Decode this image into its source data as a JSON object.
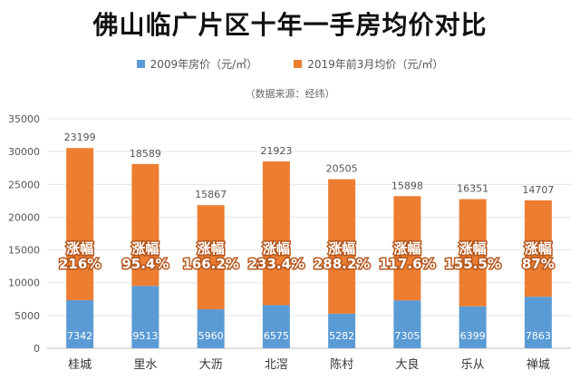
{
  "title": "佛山临广片区十年一手房均价对比",
  "source": "（数据来源：经纬）",
  "colors": {
    "base": "#5b9bd5",
    "growth": "#ed7d31"
  },
  "legend": [
    {
      "label": "2009年房价（元/㎡）",
      "color": "#5b9bd5"
    },
    {
      "label": "2019年前3月均价（元/㎡）",
      "color": "#ed7d31"
    }
  ],
  "chart_data": {
    "type": "bar",
    "stacked": true,
    "categories": [
      "桂城",
      "里水",
      "大沥",
      "北滘",
      "陈村",
      "大良",
      "乐从",
      "禅城"
    ],
    "series": [
      {
        "name": "2009年房价（元/㎡）",
        "values": [
          7342,
          9513,
          5960,
          6575,
          5282,
          7305,
          6399,
          7863
        ]
      },
      {
        "name": "2019年前3月均价（元/㎡）",
        "values": [
          23199,
          18589,
          15867,
          21923,
          20505,
          15898,
          16351,
          14707
        ]
      }
    ],
    "growth_label": "涨幅",
    "growth": [
      "216%",
      "95.4%",
      "166.2%",
      "233.4%",
      "288.2%",
      "117.6%",
      "155.5%",
      "87%"
    ],
    "yticks": [
      "0",
      "5000",
      "10000",
      "15000",
      "20000",
      "25000",
      "30000",
      "35000"
    ],
    "ylim": [
      0,
      35000
    ],
    "grid": true,
    "legend_position": "top"
  }
}
